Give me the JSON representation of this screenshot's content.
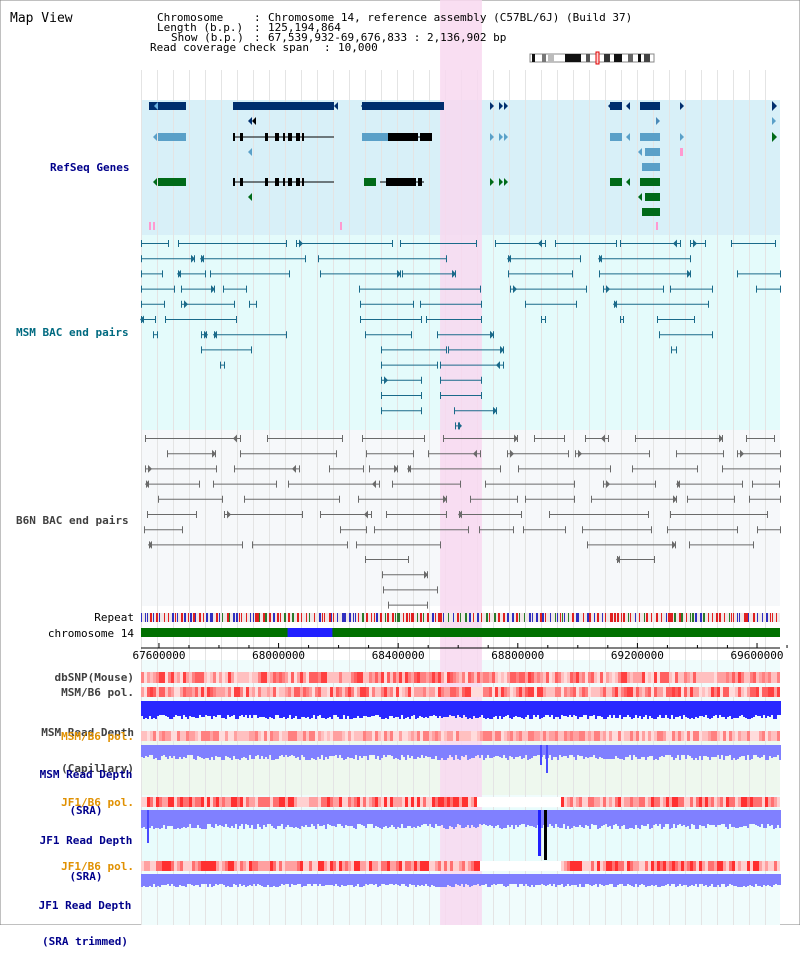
{
  "view": {
    "title": "Map View",
    "info": {
      "chromosome_label": "Chromosome",
      "chromosome_value": "Chromosome 14, reference assembly (C57BL/6J) (Build 37)",
      "length_label": "Length (b.p.)",
      "length_value": "125,194,864",
      "show_label": "Show (b.p.)",
      "show_value": "67,539,932-69,676,833 : 2,136,902 bp",
      "coverage_label": "Read coverage check span",
      "coverage_value": "10,000"
    }
  },
  "tracks": {
    "refseq": "RefSeq Genes",
    "msm_bac": "MSM BAC end pairs",
    "b6n_bac": "B6N BAC end pairs",
    "repeat": "Repeat",
    "chromosome": "chromosome 14",
    "dbsnp": "dbSNP(Mouse)",
    "msm_b6_pol": "MSM/B6 pol.",
    "msm_depth_cap_1": "MSM Read Depth",
    "msm_depth_cap_2": "(Capillary)",
    "msm_b6_pol_sra": "MSM/B6 pol.",
    "msm_depth_sra_1": "MSM Read Depth",
    "msm_depth_sra_2": "(SRA)",
    "jf1_b6_pol": "JF1/B6 pol.",
    "jf1_depth_1": "JF1 Read Depth",
    "jf1_depth_2": "(SRA)",
    "jf1_b6_pol_trim": "JF1/B6 pol.",
    "jf1_trim_1": "JF1 Read Depth",
    "jf1_trim_2": "(SRA trimmed)"
  },
  "axis": {
    "start_bp": 67539932,
    "end_bp": 69676833,
    "ticks": [
      "67600000",
      "68000000",
      "68400000",
      "68800000",
      "69200000",
      "69600000"
    ],
    "tick_values": [
      67600000,
      68000000,
      68400000,
      68800000,
      69200000,
      69600000
    ]
  },
  "highlight": {
    "start_bp": 68540000,
    "end_bp": 68680000
  },
  "chromosome_highlight": {
    "start_bp": 68030000,
    "end_bp": 68180000
  },
  "colors": {
    "refseq_bg": "#d8f0f8",
    "msm_bg": "#e4fbfb",
    "b6n_bg": "#f6f8fa",
    "highlight": "#f8d8f0",
    "navy": "#002e6e",
    "light_blue": "#5aa0c8",
    "green": "#006a18",
    "teal": "#1a6a8a",
    "gray": "#6a6a6a",
    "chrom_green": "#007000",
    "chrom_blue": "#2020ff",
    "depth_blue": "#2828ff",
    "depth_light": "#8080ff",
    "label_navy": "#00008b",
    "label_teal": "#006a80",
    "label_gray": "#404040",
    "label_orange": "#e09000"
  }
}
